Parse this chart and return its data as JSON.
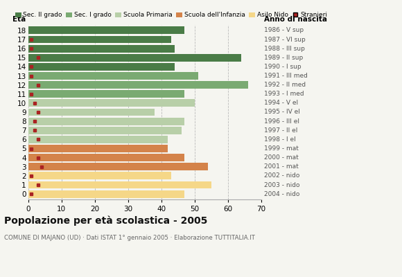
{
  "ages": [
    18,
    17,
    16,
    15,
    14,
    13,
    12,
    11,
    10,
    9,
    8,
    7,
    6,
    5,
    4,
    3,
    2,
    1,
    0
  ],
  "years": [
    "1986 - V sup",
    "1987 - VI sup",
    "1988 - III sup",
    "1989 - II sup",
    "1990 - I sup",
    "1991 - III med",
    "1992 - II med",
    "1993 - I med",
    "1994 - V el",
    "1995 - IV el",
    "1996 - III el",
    "1997 - II el",
    "1998 - I el",
    "1999 - mat",
    "2000 - mat",
    "2001 - mat",
    "2002 - nido",
    "2003 - nido",
    "2004 - nido"
  ],
  "bar_values": [
    47,
    43,
    44,
    64,
    44,
    51,
    66,
    47,
    50,
    38,
    47,
    46,
    42,
    42,
    47,
    54,
    43,
    55,
    47
  ],
  "stranieri": [
    0,
    1,
    1,
    3,
    1,
    1,
    3,
    1,
    2,
    3,
    2,
    2,
    3,
    1,
    3,
    4,
    1,
    3,
    1
  ],
  "bar_colors": [
    "#4a7c47",
    "#4a7c47",
    "#4a7c47",
    "#4a7c47",
    "#4a7c47",
    "#7aaa72",
    "#7aaa72",
    "#7aaa72",
    "#b8cfa8",
    "#b8cfa8",
    "#b8cfa8",
    "#b8cfa8",
    "#b8cfa8",
    "#d4834a",
    "#d4834a",
    "#d4834a",
    "#f5d788",
    "#f5d788",
    "#f5d788"
  ],
  "legend_labels": [
    "Sec. II grado",
    "Sec. I grado",
    "Scuola Primaria",
    "Scuola dell'Infanzia",
    "Asilo Nido",
    "Stranieri"
  ],
  "legend_colors": [
    "#4a7c47",
    "#7aaa72",
    "#b8cfa8",
    "#d4834a",
    "#f5d788",
    "#aa2222"
  ],
  "title": "Popolazione per età scolastica - 2005",
  "subtitle": "COMUNE DI MAJANO (UD) · Dati ISTAT 1° gennaio 2005 · Elaborazione TUTTITALIA.IT",
  "xlabel_eta": "Età",
  "xlabel_anno": "Anno di nascita",
  "xlim": [
    0,
    70
  ],
  "xticks": [
    0,
    10,
    20,
    30,
    40,
    50,
    60,
    70
  ],
  "stranieri_color": "#aa2222",
  "bar_height": 0.82,
  "bg_color": "#f5f5f0",
  "grid_color": "#bbbbbb"
}
